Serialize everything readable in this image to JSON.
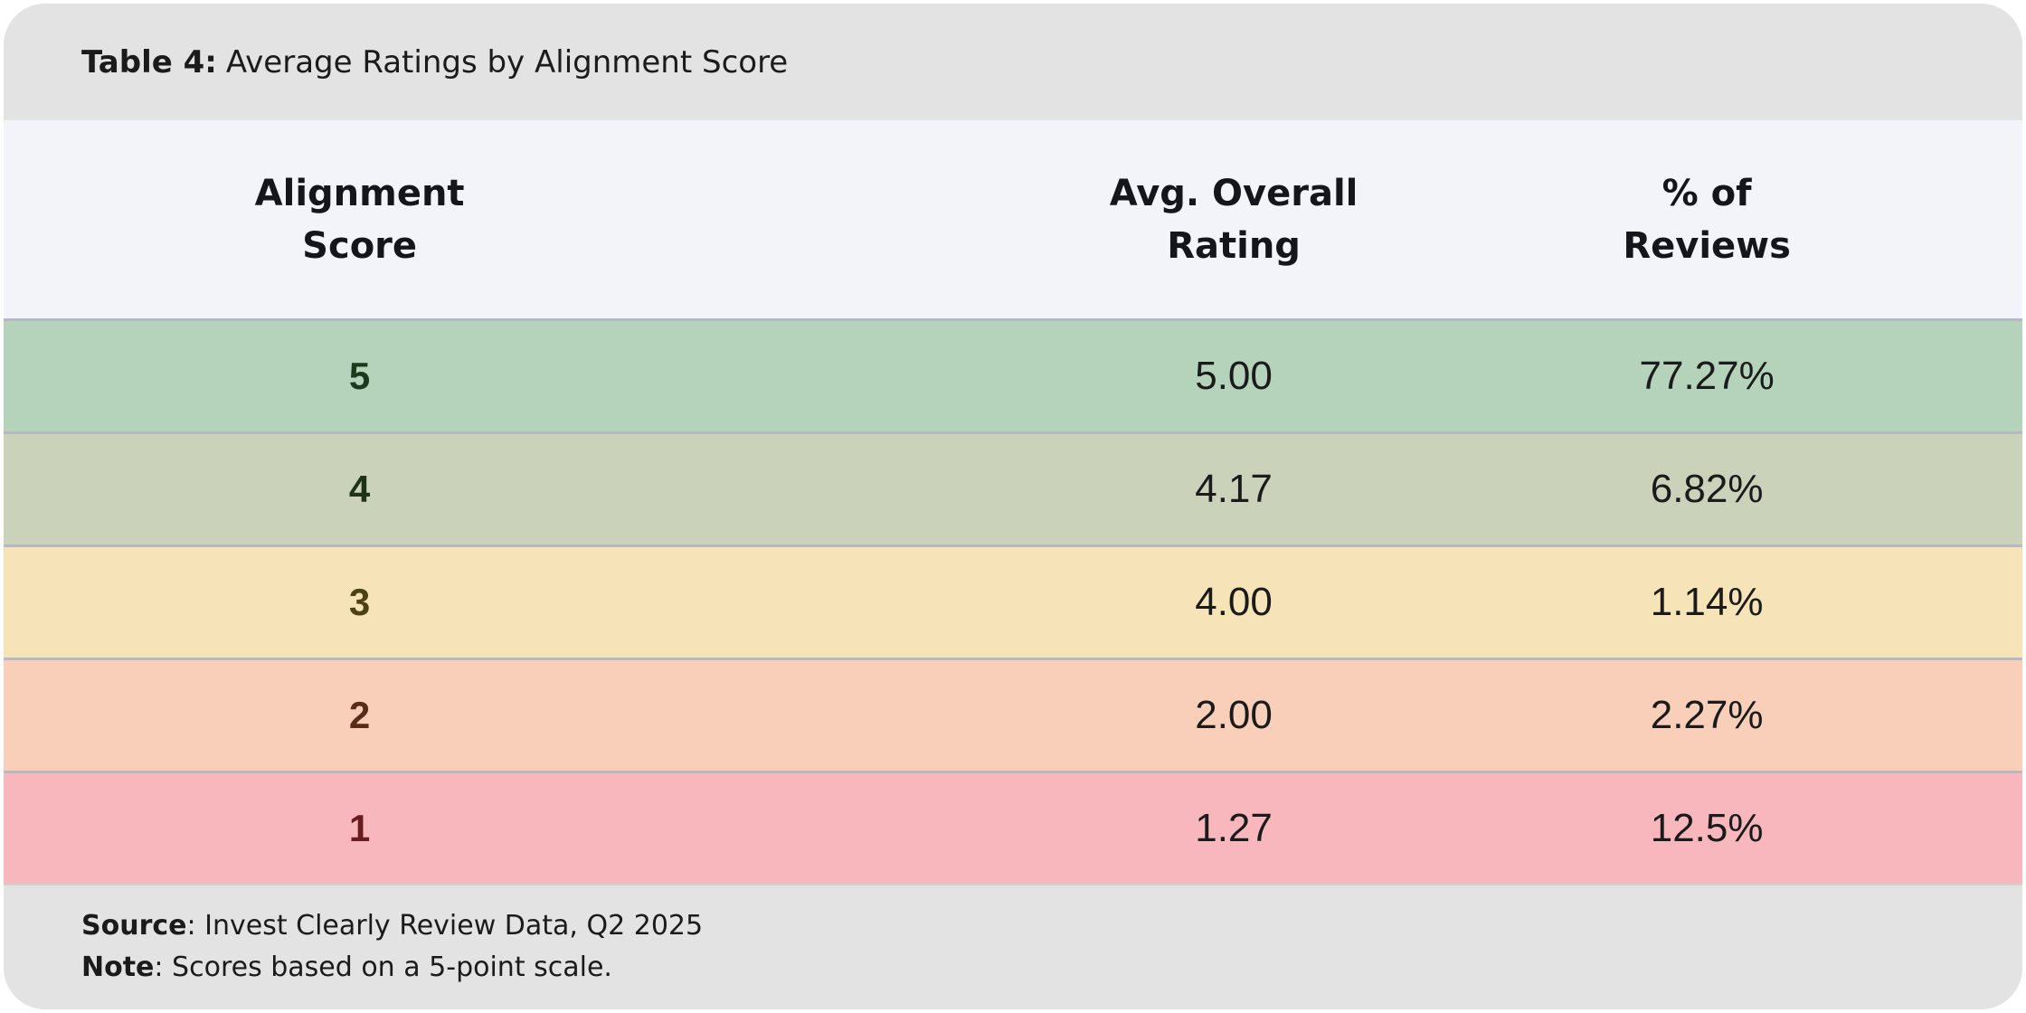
{
  "title": {
    "label": "Table 4:",
    "text": "Average Ratings by Alignment Score"
  },
  "table": {
    "columns": [
      {
        "line1": "Alignment",
        "line2": "Score"
      },
      {
        "line1": "Avg. Overall",
        "line2": "Rating"
      },
      {
        "line1": "% of",
        "line2": "Reviews"
      }
    ],
    "rows": [
      {
        "score": "5",
        "rating": "5.00",
        "pct": "77.27%",
        "bg": "#b5d2ba",
        "score_color": "#1d3a1d"
      },
      {
        "score": "4",
        "rating": "4.17",
        "pct": "6.82%",
        "bg": "#cad3ba",
        "score_color": "#203317"
      },
      {
        "score": "3",
        "rating": "4.00",
        "pct": "1.14%",
        "bg": "#f6e4b8",
        "score_color": "#4d4214"
      },
      {
        "score": "2",
        "rating": "2.00",
        "pct": "2.27%",
        "bg": "#f9cfba",
        "score_color": "#5a2b15"
      },
      {
        "score": "1",
        "rating": "1.27",
        "pct": "12.5%",
        "bg": "#f8b7bd",
        "score_color": "#681c20"
      }
    ]
  },
  "footer": {
    "source_label": "Source",
    "source_rest": ": Invest Clearly Review Data, Q2 2025",
    "note_label": "Note",
    "note_rest": ": Scores based on a 5-point scale."
  },
  "palette": {
    "card_background": "#e3e3e3",
    "header_row_background": "#f3f4f9",
    "row_separator": "#b6b9c1",
    "text_dark": "#1b1b1b"
  },
  "chart_data": {
    "type": "table",
    "title": "Table 4: Average Ratings by Alignment Score",
    "columns": [
      "Alignment Score",
      "Avg. Overall Rating",
      "% of Reviews"
    ],
    "rows": [
      [
        5,
        5.0,
        "77.27%"
      ],
      [
        4,
        4.17,
        "6.82%"
      ],
      [
        3,
        4.0,
        "1.14%"
      ],
      [
        2,
        2.0,
        "2.27%"
      ],
      [
        1,
        1.27,
        "12.5%"
      ]
    ],
    "row_color_scale": [
      "#b5d2ba",
      "#cad3ba",
      "#f6e4b8",
      "#f9cfba",
      "#f8b7bd"
    ],
    "source": "Invest Clearly Review Data, Q2 2025",
    "note": "Scores based on a 5-point scale."
  }
}
